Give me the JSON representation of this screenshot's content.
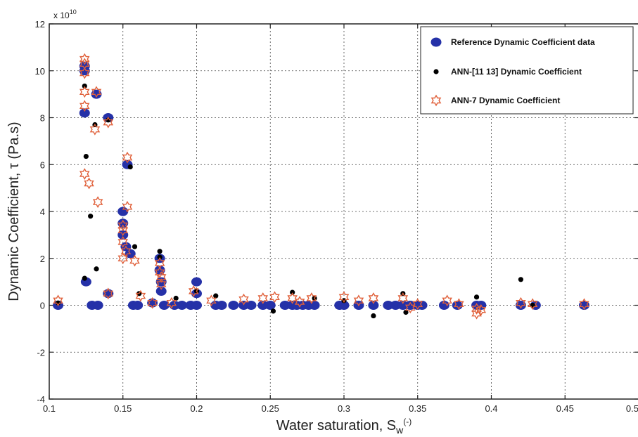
{
  "chart_data": {
    "type": "scatter",
    "xlabel": "Water saturation, S",
    "xlabel_sub": "w",
    "xlabel_sup": "(-)",
    "ylabel": "Dynamic Coefficient, τ (Pa.s)",
    "y_multiplier": "x 10",
    "y_multiplier_exp": "10",
    "xlim": [
      0.1,
      0.5
    ],
    "ylim": [
      -4,
      12
    ],
    "xticks": [
      0.1,
      0.15,
      0.2,
      0.25,
      0.3,
      0.35,
      0.4,
      0.45,
      0.5
    ],
    "xtick_labels": [
      "0.1",
      "0.15",
      "0.2",
      "0.25",
      "0.3",
      "0.35",
      "0.4",
      "0.45",
      "0.5"
    ],
    "yticks": [
      -4,
      -2,
      0,
      2,
      4,
      6,
      8,
      10,
      12
    ],
    "ytick_labels": [
      "-4",
      "-2",
      "0",
      "2",
      "4",
      "6",
      "8",
      "10",
      "12"
    ],
    "legend_position": "top-right",
    "series": [
      {
        "name": "Reference Dynamic Coefficient data",
        "marker": "filled-circle",
        "color": "#2531a8",
        "points": [
          [
            0.106,
            0
          ],
          [
            0.124,
            10.2
          ],
          [
            0.124,
            10
          ],
          [
            0.124,
            8.2
          ],
          [
            0.125,
            1
          ],
          [
            0.129,
            0
          ],
          [
            0.133,
            0
          ],
          [
            0.132,
            9
          ],
          [
            0.14,
            8
          ],
          [
            0.14,
            0.5
          ],
          [
            0.15,
            4
          ],
          [
            0.15,
            3.5
          ],
          [
            0.15,
            3
          ],
          [
            0.152,
            2.5
          ],
          [
            0.153,
            6
          ],
          [
            0.155,
            2.2
          ],
          [
            0.157,
            0
          ],
          [
            0.16,
            0
          ],
          [
            0.17,
            0.1
          ],
          [
            0.175,
            1.5
          ],
          [
            0.175,
            2
          ],
          [
            0.176,
            1
          ],
          [
            0.176,
            0.6
          ],
          [
            0.178,
            0
          ],
          [
            0.185,
            0
          ],
          [
            0.19,
            0
          ],
          [
            0.196,
            0
          ],
          [
            0.2,
            1
          ],
          [
            0.2,
            0.5
          ],
          [
            0.2,
            0
          ],
          [
            0.213,
            0
          ],
          [
            0.217,
            0
          ],
          [
            0.225,
            0
          ],
          [
            0.232,
            0
          ],
          [
            0.237,
            0
          ],
          [
            0.245,
            0
          ],
          [
            0.25,
            0
          ],
          [
            0.26,
            0
          ],
          [
            0.265,
            0
          ],
          [
            0.268,
            0
          ],
          [
            0.272,
            0
          ],
          [
            0.276,
            0
          ],
          [
            0.28,
            0
          ],
          [
            0.297,
            0
          ],
          [
            0.3,
            0
          ],
          [
            0.31,
            0
          ],
          [
            0.32,
            0
          ],
          [
            0.33,
            0
          ],
          [
            0.335,
            0
          ],
          [
            0.34,
            0
          ],
          [
            0.345,
            0
          ],
          [
            0.35,
            0
          ],
          [
            0.353,
            0
          ],
          [
            0.368,
            0
          ],
          [
            0.377,
            0
          ],
          [
            0.39,
            0
          ],
          [
            0.393,
            0
          ],
          [
            0.42,
            0
          ],
          [
            0.43,
            0
          ],
          [
            0.463,
            0
          ]
        ]
      },
      {
        "name": "ANN-[11 13] Dynamic Coefficient",
        "marker": "small-dot",
        "color": "#000000",
        "points": [
          [
            0.106,
            0.1
          ],
          [
            0.124,
            9.35
          ],
          [
            0.125,
            6.35
          ],
          [
            0.124,
            1.15
          ],
          [
            0.128,
            3.8
          ],
          [
            0.131,
            7.7
          ],
          [
            0.132,
            1.55
          ],
          [
            0.14,
            7.9
          ],
          [
            0.155,
            5.9
          ],
          [
            0.158,
            2.5
          ],
          [
            0.161,
            0.5
          ],
          [
            0.175,
            2.3
          ],
          [
            0.175,
            2.05
          ],
          [
            0.186,
            0.3
          ],
          [
            0.2,
            0.6
          ],
          [
            0.213,
            0.4
          ],
          [
            0.252,
            -0.25
          ],
          [
            0.265,
            0.55
          ],
          [
            0.28,
            0.3
          ],
          [
            0.3,
            0.2
          ],
          [
            0.32,
            -0.45
          ],
          [
            0.34,
            0.5
          ],
          [
            0.342,
            -0.3
          ],
          [
            0.39,
            0.35
          ],
          [
            0.42,
            1.1
          ],
          [
            0.428,
            0
          ]
        ]
      },
      {
        "name": "ANN-7 Dynamic Coefficient",
        "marker": "hexagram-open",
        "color": "#e0603a",
        "points": [
          [
            0.106,
            0.2
          ],
          [
            0.124,
            10.5
          ],
          [
            0.124,
            10.3
          ],
          [
            0.124,
            9.9
          ],
          [
            0.124,
            9.1
          ],
          [
            0.124,
            8.5
          ],
          [
            0.124,
            5.6
          ],
          [
            0.127,
            5.2
          ],
          [
            0.131,
            7.5
          ],
          [
            0.132,
            9.1
          ],
          [
            0.133,
            4.4
          ],
          [
            0.14,
            7.8
          ],
          [
            0.14,
            0.5
          ],
          [
            0.15,
            3.4
          ],
          [
            0.15,
            3.2
          ],
          [
            0.15,
            2.7
          ],
          [
            0.15,
            2
          ],
          [
            0.152,
            2.3
          ],
          [
            0.153,
            6.3
          ],
          [
            0.153,
            4.2
          ],
          [
            0.158,
            1.9
          ],
          [
            0.162,
            0.4
          ],
          [
            0.17,
            0.1
          ],
          [
            0.175,
            1.8
          ],
          [
            0.175,
            1.4
          ],
          [
            0.176,
            1.2
          ],
          [
            0.176,
            0.9
          ],
          [
            0.183,
            0.1
          ],
          [
            0.198,
            0.6
          ],
          [
            0.21,
            0.2
          ],
          [
            0.232,
            0.25
          ],
          [
            0.245,
            0.3
          ],
          [
            0.253,
            0.35
          ],
          [
            0.265,
            0.3
          ],
          [
            0.27,
            0.15
          ],
          [
            0.278,
            0.3
          ],
          [
            0.3,
            0.35
          ],
          [
            0.31,
            0.2
          ],
          [
            0.32,
            0.3
          ],
          [
            0.34,
            0.3
          ],
          [
            0.345,
            -0.1
          ],
          [
            0.35,
            0.05
          ],
          [
            0.37,
            0.2
          ],
          [
            0.378,
            0.05
          ],
          [
            0.39,
            -0.15
          ],
          [
            0.39,
            -0.35
          ],
          [
            0.393,
            -0.2
          ],
          [
            0.42,
            0.1
          ],
          [
            0.428,
            0.05
          ],
          [
            0.463,
            0.05
          ]
        ]
      }
    ]
  }
}
